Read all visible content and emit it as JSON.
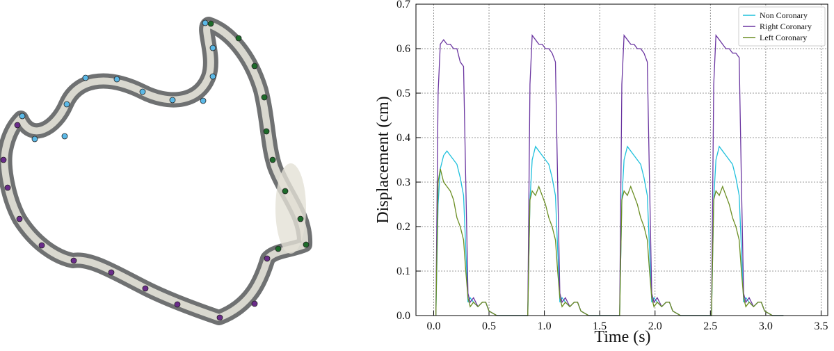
{
  "chart_data": {
    "type": "line",
    "xlabel": "Time (s)",
    "ylabel": "Displacement (cm)",
    "xlim": [
      -0.16,
      3.56
    ],
    "ylim": [
      0,
      0.7
    ],
    "xticks": [
      {
        "value": 0,
        "label": "0.0"
      },
      0.5,
      {
        "value": 1,
        "label": "1.0"
      },
      1.5,
      {
        "value": 2,
        "label": "2.0"
      },
      2.5,
      {
        "value": 3,
        "label": "3.0"
      },
      3.5
    ],
    "yticks": [
      {
        "value": 0,
        "label": "0.0"
      },
      0.1,
      0.2,
      0.3,
      0.4,
      0.5,
      0.6,
      0.7
    ],
    "grid": true,
    "legend": "upper right",
    "x": [
      0.02,
      0.04,
      0.06,
      0.09,
      0.12,
      0.15,
      0.18,
      0.21,
      0.24,
      0.27,
      0.29,
      0.31,
      0.33,
      0.36,
      0.4,
      0.44,
      0.47,
      0.5,
      0.57,
      0.67,
      0.85,
      0.87,
      0.89,
      0.92,
      0.95,
      0.98,
      1.01,
      1.04,
      1.07,
      1.1,
      1.12,
      1.14,
      1.16,
      1.19,
      1.23,
      1.27,
      1.3,
      1.33,
      1.4,
      1.5,
      1.68,
      1.7,
      1.72,
      1.75,
      1.78,
      1.81,
      1.84,
      1.87,
      1.9,
      1.93,
      1.95,
      1.97,
      1.99,
      2.02,
      2.06,
      2.1,
      2.13,
      2.16,
      2.23,
      2.33,
      2.51,
      2.53,
      2.55,
      2.58,
      2.61,
      2.64,
      2.67,
      2.7,
      2.73,
      2.76,
      2.78,
      2.8,
      2.82,
      2.85,
      2.89,
      2.93,
      2.96,
      2.99,
      3.06,
      3.16
    ],
    "series": [
      {
        "name": "Non Coronary",
        "color": "#1fc0dc",
        "values": [
          0,
          0.25,
          0.33,
          0.36,
          0.37,
          0.36,
          0.35,
          0.34,
          0.31,
          0.27,
          0.15,
          0.03,
          0.04,
          0.03,
          0.02,
          0.03,
          0.03,
          0.01,
          0,
          0,
          0,
          0.26,
          0.35,
          0.38,
          0.37,
          0.36,
          0.35,
          0.34,
          0.31,
          0.27,
          0.15,
          0.03,
          0.04,
          0.03,
          0.02,
          0.03,
          0.03,
          0.01,
          0,
          0,
          0,
          0.26,
          0.35,
          0.38,
          0.37,
          0.36,
          0.35,
          0.34,
          0.31,
          0.27,
          0.15,
          0.03,
          0.04,
          0.03,
          0.02,
          0.03,
          0.03,
          0.01,
          0,
          0,
          0,
          0.26,
          0.35,
          0.38,
          0.37,
          0.36,
          0.35,
          0.34,
          0.31,
          0.27,
          0.15,
          0.03,
          0.04,
          0.03,
          0.02,
          0.03,
          0.03,
          0.01,
          0,
          0
        ]
      },
      {
        "name": "Right Coronary",
        "color": "#6a35a0",
        "values": [
          0,
          0.5,
          0.61,
          0.62,
          0.61,
          0.61,
          0.6,
          0.6,
          0.57,
          0.56,
          0.3,
          0.05,
          0.03,
          0.04,
          0.02,
          0.03,
          0.03,
          0.01,
          0,
          0,
          0,
          0.52,
          0.63,
          0.62,
          0.61,
          0.61,
          0.6,
          0.6,
          0.59,
          0.57,
          0.3,
          0.05,
          0.03,
          0.04,
          0.02,
          0.03,
          0.03,
          0.01,
          0,
          0,
          0,
          0.52,
          0.63,
          0.62,
          0.61,
          0.61,
          0.6,
          0.6,
          0.59,
          0.57,
          0.3,
          0.05,
          0.03,
          0.04,
          0.02,
          0.03,
          0.03,
          0.01,
          0,
          0,
          0,
          0.52,
          0.63,
          0.62,
          0.61,
          0.6,
          0.6,
          0.59,
          0.59,
          0.58,
          0.3,
          0.05,
          0.03,
          0.04,
          0.02,
          0.03,
          0.03,
          0.01,
          0,
          0
        ]
      },
      {
        "name": "Left Coronary",
        "color": "#6b8e23",
        "values": [
          0,
          0.3,
          0.33,
          0.3,
          0.29,
          0.28,
          0.26,
          0.22,
          0.2,
          0.17,
          0.1,
          0.04,
          0.02,
          0.03,
          0.02,
          0.03,
          0.03,
          0.01,
          0,
          0,
          0,
          0.26,
          0.28,
          0.27,
          0.29,
          0.27,
          0.25,
          0.22,
          0.2,
          0.17,
          0.1,
          0.04,
          0.02,
          0.03,
          0.02,
          0.03,
          0.03,
          0.01,
          0,
          0,
          0,
          0.26,
          0.28,
          0.27,
          0.29,
          0.27,
          0.25,
          0.22,
          0.2,
          0.17,
          0.1,
          0.04,
          0.02,
          0.03,
          0.02,
          0.03,
          0.03,
          0.01,
          0,
          0,
          0,
          0.26,
          0.28,
          0.27,
          0.29,
          0.27,
          0.25,
          0.22,
          0.2,
          0.17,
          0.1,
          0.04,
          0.02,
          0.03,
          0.02,
          0.03,
          0.03,
          0.01,
          0,
          0
        ]
      }
    ]
  }
}
